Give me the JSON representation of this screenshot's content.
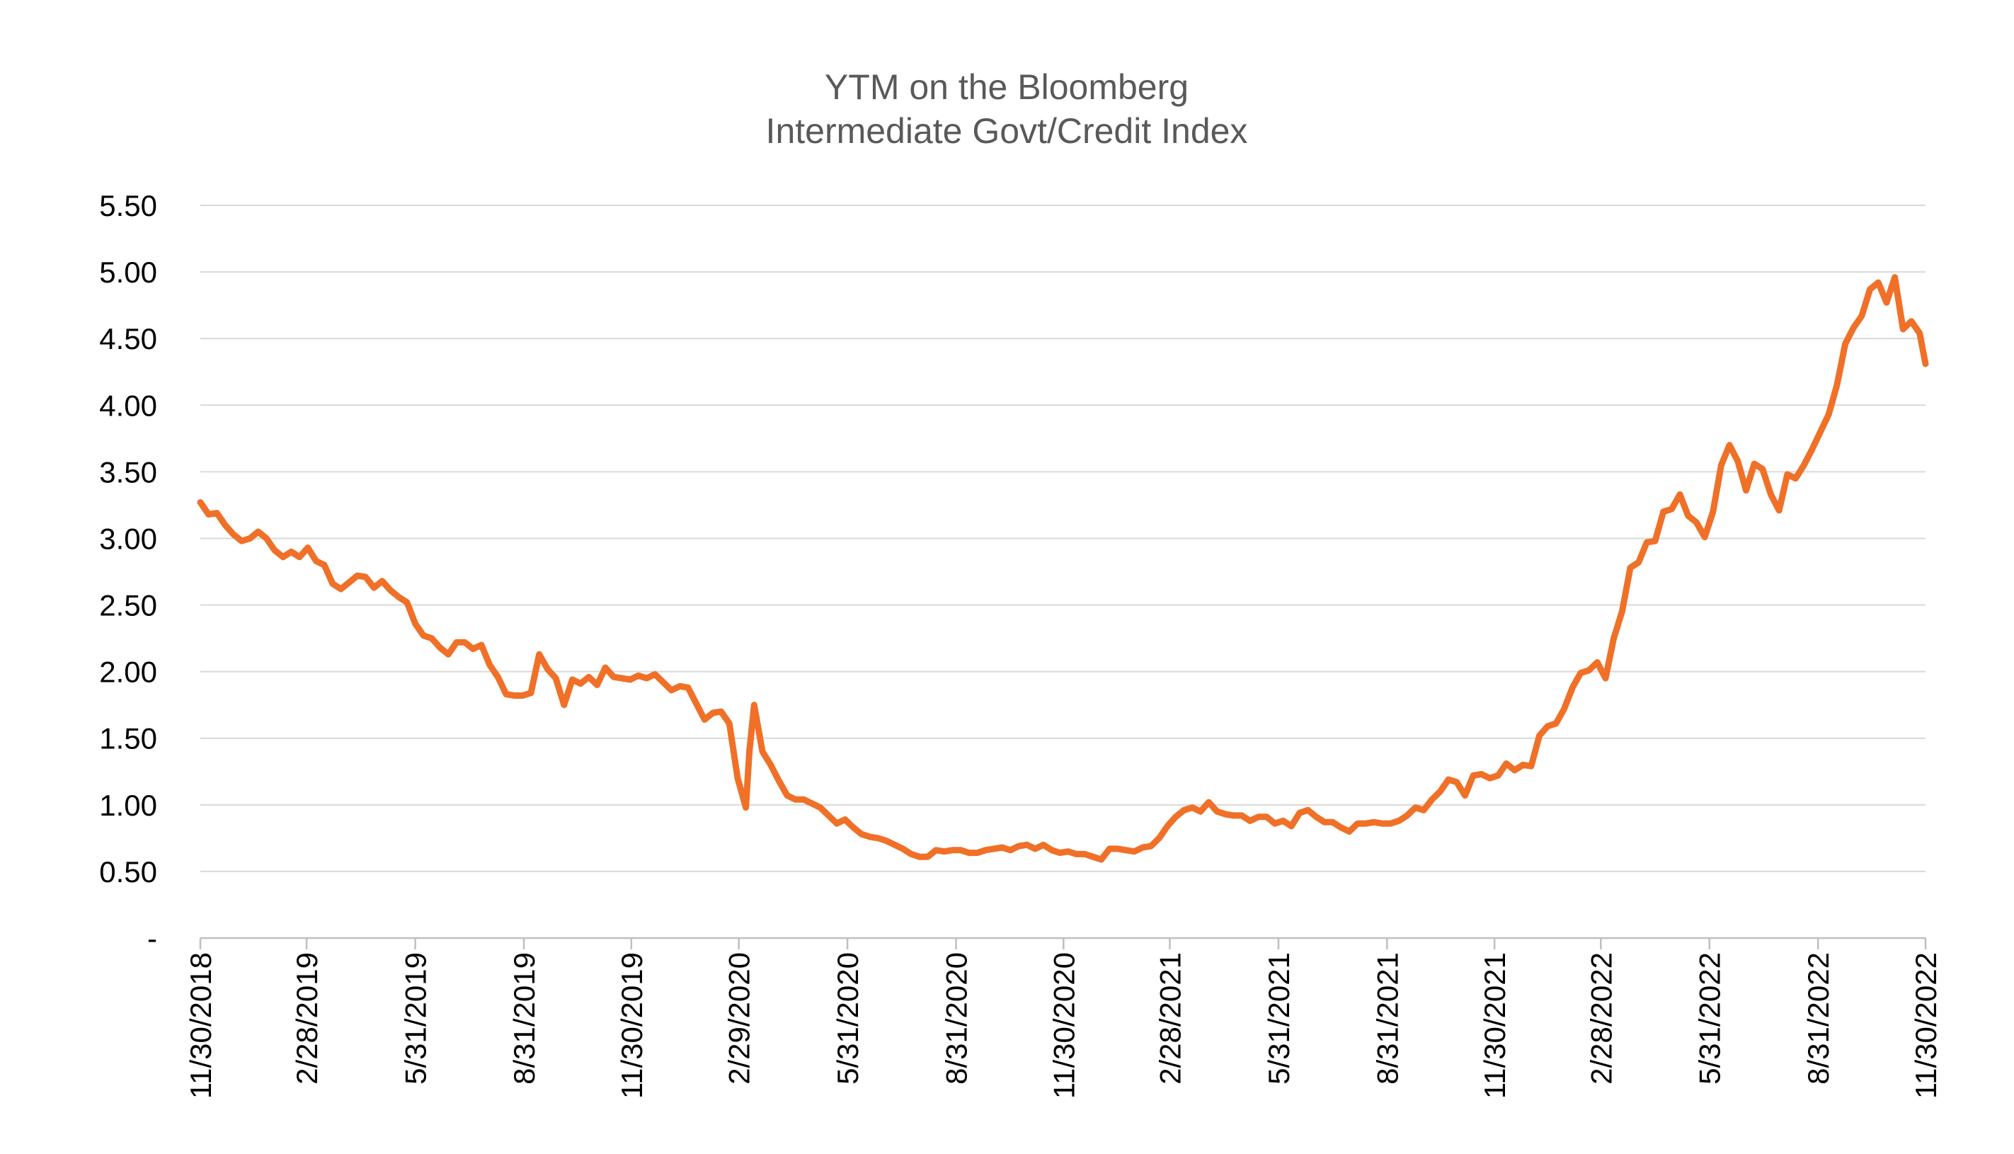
{
  "chart_data": {
    "type": "line",
    "title": [
      "YTM on the Bloomberg",
      "Intermediate Govt/Credit Index"
    ],
    "xlabel": "",
    "ylabel": "",
    "ylim": [
      0,
      5.5
    ],
    "yticks": [
      0,
      0.5,
      1.0,
      1.5,
      2.0,
      2.5,
      3.0,
      3.5,
      4.0,
      4.5,
      5.0,
      5.5
    ],
    "ytick_labels": [
      "-",
      "0.50",
      "1.00",
      "1.50",
      "2.00",
      "2.50",
      "3.00",
      "3.50",
      "4.00",
      "4.50",
      "5.00",
      "5.50"
    ],
    "xticks": [
      "11/30/2018",
      "2/28/2019",
      "5/31/2019",
      "8/31/2019",
      "11/30/2019",
      "2/29/2020",
      "5/31/2020",
      "8/31/2020",
      "11/30/2020",
      "2/28/2021",
      "5/31/2021",
      "8/31/2021",
      "11/30/2021",
      "2/28/2022",
      "5/31/2022",
      "8/31/2022",
      "11/30/2022"
    ],
    "xlim": [
      "2018-11-30",
      "2022-11-30"
    ],
    "grid": true,
    "legend": "none",
    "series_color": "#F07028",
    "series": [
      {
        "x": [
          "2018-11-30",
          "2018-12-07",
          "2018-12-14",
          "2018-12-21",
          "2018-12-28",
          "2019-01-04",
          "2019-01-11",
          "2019-01-18",
          "2019-01-25",
          "2019-02-01",
          "2019-02-08",
          "2019-02-15",
          "2019-02-22",
          "2019-03-01",
          "2019-03-08",
          "2019-03-15",
          "2019-03-22",
          "2019-03-29",
          "2019-04-05",
          "2019-04-12",
          "2019-04-19",
          "2019-04-26",
          "2019-05-03",
          "2019-05-10",
          "2019-05-17",
          "2019-05-24",
          "2019-05-31",
          "2019-06-07",
          "2019-06-14",
          "2019-06-21",
          "2019-06-28",
          "2019-07-05",
          "2019-07-12",
          "2019-07-19",
          "2019-07-26",
          "2019-08-02",
          "2019-08-09",
          "2019-08-16",
          "2019-08-23",
          "2019-08-30",
          "2019-09-06",
          "2019-09-13",
          "2019-09-20",
          "2019-09-27",
          "2019-10-04",
          "2019-10-11",
          "2019-10-18",
          "2019-10-25",
          "2019-11-01",
          "2019-11-08",
          "2019-11-15",
          "2019-11-22",
          "2019-11-29",
          "2019-12-06",
          "2019-12-13",
          "2019-12-20",
          "2019-12-27",
          "2020-01-03",
          "2020-01-10",
          "2020-01-17",
          "2020-01-24",
          "2020-01-31",
          "2020-02-07",
          "2020-02-14",
          "2020-02-21",
          "2020-02-28",
          "2020-03-06",
          "2020-03-09",
          "2020-03-13",
          "2020-03-20",
          "2020-03-27",
          "2020-04-03",
          "2020-04-10",
          "2020-04-17",
          "2020-04-24",
          "2020-05-01",
          "2020-05-08",
          "2020-05-15",
          "2020-05-22",
          "2020-05-29",
          "2020-06-05",
          "2020-06-12",
          "2020-06-19",
          "2020-06-26",
          "2020-07-03",
          "2020-07-10",
          "2020-07-17",
          "2020-07-24",
          "2020-07-31",
          "2020-08-07",
          "2020-08-14",
          "2020-08-21",
          "2020-08-28",
          "2020-09-04",
          "2020-09-11",
          "2020-09-18",
          "2020-09-25",
          "2020-10-02",
          "2020-10-09",
          "2020-10-16",
          "2020-10-23",
          "2020-10-30",
          "2020-11-06",
          "2020-11-13",
          "2020-11-20",
          "2020-11-27",
          "2020-12-04",
          "2020-12-11",
          "2020-12-18",
          "2020-12-25",
          "2021-01-01",
          "2021-01-08",
          "2021-01-15",
          "2021-01-22",
          "2021-01-29",
          "2021-02-05",
          "2021-02-12",
          "2021-02-19",
          "2021-02-26",
          "2021-03-05",
          "2021-03-12",
          "2021-03-19",
          "2021-03-26",
          "2021-04-02",
          "2021-04-09",
          "2021-04-16",
          "2021-04-23",
          "2021-04-30",
          "2021-05-07",
          "2021-05-14",
          "2021-05-21",
          "2021-05-28",
          "2021-06-04",
          "2021-06-11",
          "2021-06-18",
          "2021-06-25",
          "2021-07-02",
          "2021-07-09",
          "2021-07-16",
          "2021-07-23",
          "2021-07-30",
          "2021-08-06",
          "2021-08-13",
          "2021-08-20",
          "2021-08-27",
          "2021-09-03",
          "2021-09-10",
          "2021-09-17",
          "2021-09-24",
          "2021-10-01",
          "2021-10-08",
          "2021-10-15",
          "2021-10-22",
          "2021-10-29",
          "2021-11-05",
          "2021-11-12",
          "2021-11-19",
          "2021-11-26",
          "2021-12-03",
          "2021-12-10",
          "2021-12-17",
          "2021-12-24",
          "2021-12-31",
          "2022-01-07",
          "2022-01-14",
          "2022-01-21",
          "2022-01-28",
          "2022-02-04",
          "2022-02-11",
          "2022-02-18",
          "2022-02-25",
          "2022-03-04",
          "2022-03-11",
          "2022-03-18",
          "2022-03-25",
          "2022-04-01",
          "2022-04-08",
          "2022-04-15",
          "2022-04-22",
          "2022-04-29",
          "2022-05-06",
          "2022-05-13",
          "2022-05-20",
          "2022-05-27",
          "2022-06-03",
          "2022-06-10",
          "2022-06-17",
          "2022-06-24",
          "2022-07-01",
          "2022-07-08",
          "2022-07-15",
          "2022-07-22",
          "2022-07-29",
          "2022-08-05",
          "2022-08-12",
          "2022-08-19",
          "2022-08-26",
          "2022-09-02",
          "2022-09-09",
          "2022-09-16",
          "2022-09-23",
          "2022-09-30",
          "2022-10-07",
          "2022-10-14",
          "2022-10-21",
          "2022-10-28",
          "2022-11-04",
          "2022-11-11",
          "2022-11-18",
          "2022-11-25",
          "2022-11-30"
        ],
        "y": [
          3.27,
          3.18,
          3.19,
          3.1,
          3.03,
          2.98,
          3.0,
          3.05,
          3.0,
          2.91,
          2.86,
          2.9,
          2.86,
          2.93,
          2.83,
          2.8,
          2.66,
          2.62,
          2.67,
          2.72,
          2.71,
          2.63,
          2.68,
          2.61,
          2.56,
          2.52,
          2.36,
          2.27,
          2.25,
          2.18,
          2.13,
          2.22,
          2.22,
          2.17,
          2.2,
          2.05,
          1.96,
          1.83,
          1.82,
          1.82,
          1.84,
          2.13,
          2.02,
          1.95,
          1.75,
          1.94,
          1.91,
          1.96,
          1.9,
          2.03,
          1.96,
          1.95,
          1.94,
          1.97,
          1.95,
          1.98,
          1.92,
          1.86,
          1.89,
          1.88,
          1.76,
          1.64,
          1.69,
          1.7,
          1.61,
          1.2,
          0.98,
          1.4,
          1.75,
          1.4,
          1.3,
          1.18,
          1.07,
          1.04,
          1.04,
          1.01,
          0.98,
          0.92,
          0.86,
          0.89,
          0.83,
          0.78,
          0.76,
          0.75,
          0.73,
          0.7,
          0.67,
          0.63,
          0.61,
          0.61,
          0.66,
          0.65,
          0.66,
          0.66,
          0.64,
          0.64,
          0.66,
          0.67,
          0.68,
          0.66,
          0.69,
          0.7,
          0.67,
          0.7,
          0.66,
          0.64,
          0.65,
          0.63,
          0.63,
          0.61,
          0.59,
          0.67,
          0.67,
          0.66,
          0.65,
          0.68,
          0.69,
          0.75,
          0.84,
          0.91,
          0.96,
          0.98,
          0.95,
          1.02,
          0.95,
          0.93,
          0.92,
          0.92,
          0.88,
          0.91,
          0.91,
          0.86,
          0.88,
          0.84,
          0.94,
          0.96,
          0.91,
          0.87,
          0.87,
          0.83,
          0.8,
          0.86,
          0.86,
          0.87,
          0.86,
          0.86,
          0.88,
          0.92,
          0.98,
          0.96,
          1.04,
          1.1,
          1.19,
          1.17,
          1.07,
          1.22,
          1.23,
          1.2,
          1.22,
          1.31,
          1.26,
          1.3,
          1.29,
          1.52,
          1.59,
          1.61,
          1.72,
          1.88,
          1.99,
          2.01,
          2.07,
          1.95,
          2.25,
          2.45,
          2.78,
          2.82,
          2.97,
          2.98,
          3.2,
          3.22,
          3.33,
          3.17,
          3.12,
          3.01,
          3.2,
          3.55,
          3.7,
          3.58,
          3.36,
          3.56,
          3.52,
          3.33,
          3.21,
          3.48,
          3.45,
          3.55,
          3.67,
          3.8,
          3.93,
          4.15,
          4.46,
          4.58,
          4.67,
          4.87,
          4.92,
          4.77,
          4.96,
          4.57,
          4.63,
          4.54,
          4.31
        ]
      }
    ]
  }
}
